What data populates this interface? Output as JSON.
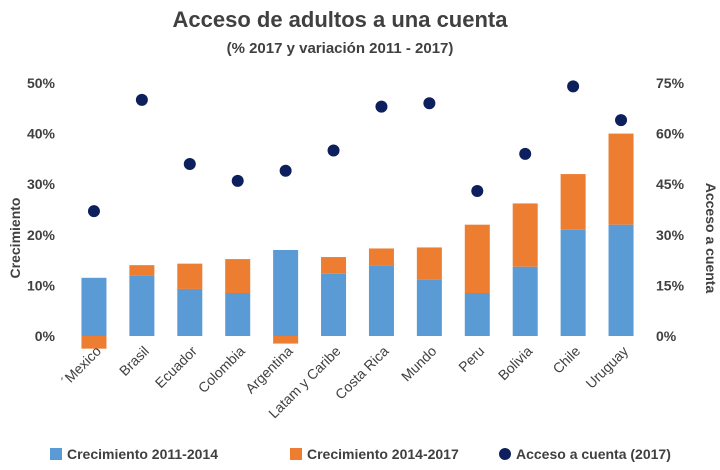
{
  "chart_data": {
    "type": "bar",
    "title": "Acceso de adultos a una cuenta",
    "subtitle": "(% 2017 y variación 2011 - 2017)",
    "ylabel": "Crecimiento",
    "y2label": "Acceso a cuenta",
    "ylim": [
      0,
      50
    ],
    "y2lim": [
      0,
      75
    ],
    "yticks": [
      "0%",
      "10%",
      "20%",
      "30%",
      "40%",
      "50%"
    ],
    "y2ticks": [
      "0%",
      "15%",
      "30%",
      "45%",
      "60%",
      "75%"
    ],
    "categories": [
      "´Mexico",
      "Brasil",
      "Ecuador",
      "Colombia",
      "Argentina",
      "Latam y Caribe",
      "Costa Rica",
      "Mundo",
      "Peru",
      "Bolivia",
      "Chile",
      "Uruguay"
    ],
    "series": [
      {
        "name": "Crecimiento 2011-2014",
        "kind": "bar",
        "color": "#5B9BD5",
        "values": [
          11.5,
          12.0,
          9.3,
          8.5,
          17.0,
          12.3,
          14.0,
          11.2,
          8.5,
          13.7,
          21.0,
          22.0
        ]
      },
      {
        "name": "Crecimiento 2014-2017",
        "kind": "bar",
        "color": "#ED7D31",
        "values": [
          -2.5,
          2.0,
          5.0,
          6.7,
          -1.5,
          3.3,
          3.3,
          6.3,
          13.5,
          12.5,
          11.0,
          18.0
        ]
      },
      {
        "name": "Acceso a cuenta (2017)",
        "kind": "scatter",
        "color": "#0D1F5C",
        "axis": "y2",
        "values": [
          37,
          70,
          51,
          46,
          49,
          55,
          68,
          69,
          43,
          54,
          74,
          64
        ]
      }
    ],
    "grid": false,
    "legend_position": "bottom"
  }
}
